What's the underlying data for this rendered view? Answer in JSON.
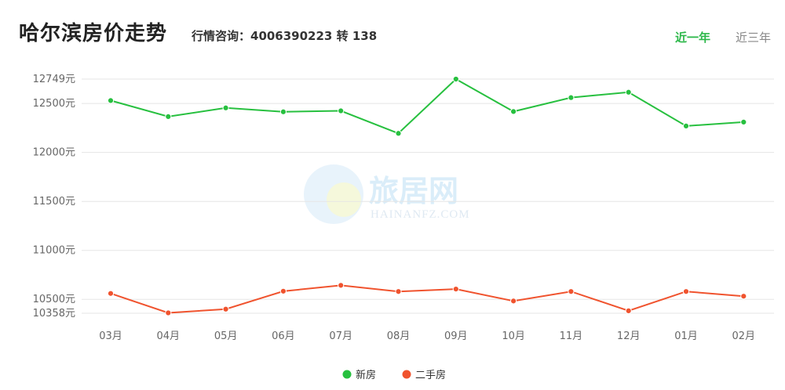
{
  "header": {
    "title": "哈尔滨房价走势",
    "hotline": "行情咨询：4006390223 转 138",
    "tabs": [
      {
        "label": "近一年",
        "active": true
      },
      {
        "label": "近三年",
        "active": false
      }
    ]
  },
  "watermark": {
    "brand": "旅居网",
    "domain": "HAINANFZ.COM"
  },
  "chart_data": {
    "type": "line",
    "categories": [
      "03月",
      "04月",
      "05月",
      "06月",
      "07月",
      "08月",
      "09月",
      "10月",
      "11月",
      "12月",
      "01月",
      "02月"
    ],
    "y_ticks": [
      {
        "value": 12749,
        "label": "12749元"
      },
      {
        "value": 12500,
        "label": "12500元"
      },
      {
        "value": 12000,
        "label": "12000元"
      },
      {
        "value": 11500,
        "label": "11500元"
      },
      {
        "value": 11000,
        "label": "11000元"
      },
      {
        "value": 10500,
        "label": "10500元"
      },
      {
        "value": 10358,
        "label": "10358元"
      }
    ],
    "ylim": [
      10358,
      12749
    ],
    "grid": true,
    "legend_position": "bottom",
    "series": [
      {
        "name": "新房",
        "color": "#27c03f",
        "values": [
          12530,
          12366,
          12455,
          12415,
          12425,
          12195,
          12749,
          12418,
          12560,
          12615,
          12270,
          12310
        ]
      },
      {
        "name": "二手房",
        "color": "#f0532e",
        "values": [
          10560,
          10362,
          10400,
          10583,
          10643,
          10580,
          10605,
          10483,
          10580,
          10383,
          10580,
          10532
        ]
      }
    ]
  }
}
